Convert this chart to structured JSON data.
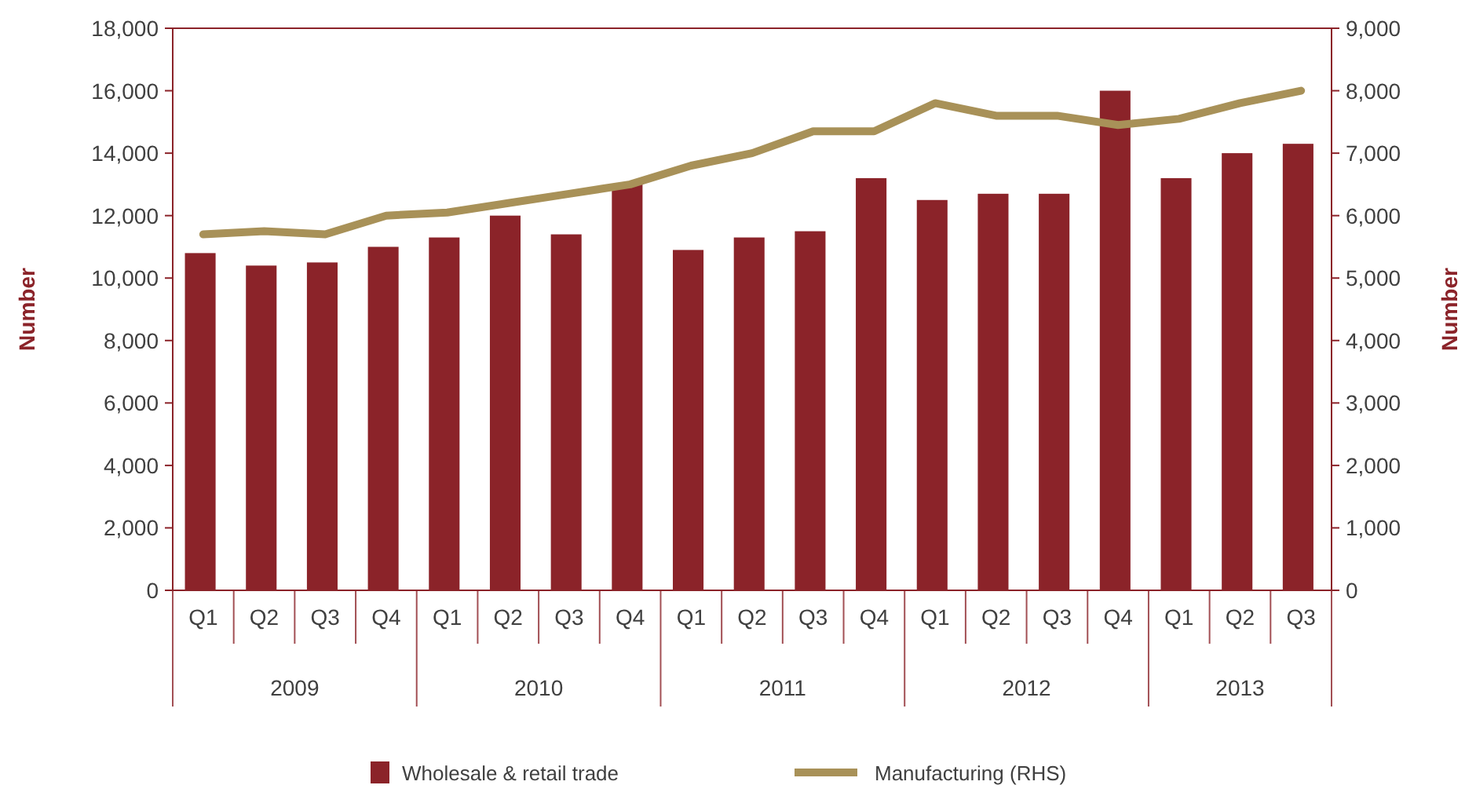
{
  "chart_data": {
    "type": "bar",
    "categories": [
      "Q1",
      "Q2",
      "Q3",
      "Q4",
      "Q1",
      "Q2",
      "Q3",
      "Q4",
      "Q1",
      "Q2",
      "Q3",
      "Q4",
      "Q1",
      "Q2",
      "Q3",
      "Q4",
      "Q1",
      "Q2",
      "Q3"
    ],
    "annotations": [
      "2009",
      "2010",
      "2011",
      "2012",
      "2013"
    ],
    "ylabel": "Number",
    "y2label": "Number",
    "ylim": [
      0,
      18000
    ],
    "yticks": [
      {
        "value": 0,
        "label": "0"
      },
      {
        "value": 2000,
        "label": "2,000"
      },
      {
        "value": 4000,
        "label": "4,000"
      },
      {
        "value": 6000,
        "label": "6,000"
      },
      {
        "value": 8000,
        "label": "8,000"
      },
      {
        "value": 10000,
        "label": "10,000"
      },
      {
        "value": 12000,
        "label": "12,000"
      },
      {
        "value": 14000,
        "label": "14,000"
      },
      {
        "value": 16000,
        "label": "16,000"
      },
      {
        "value": 18000,
        "label": "18,000"
      }
    ],
    "y2lim": [
      0,
      9000
    ],
    "y2ticks": [
      {
        "value": 0,
        "label": "0"
      },
      {
        "value": 1000,
        "label": "1,000"
      },
      {
        "value": 2000,
        "label": "2,000"
      },
      {
        "value": 3000,
        "label": "3,000"
      },
      {
        "value": 4000,
        "label": "4,000"
      },
      {
        "value": 5000,
        "label": "5,000"
      },
      {
        "value": 6000,
        "label": "6,000"
      },
      {
        "value": 7000,
        "label": "7,000"
      },
      {
        "value": 8000,
        "label": "8,000"
      },
      {
        "value": 9000,
        "label": "9,000"
      }
    ],
    "legend": "bottom",
    "grid": false,
    "marker": "none",
    "series": [
      {
        "name": "Wholesale & retail trade",
        "color": "#8b2329",
        "values": [
          10800,
          10400,
          10500,
          11000,
          11300,
          12000,
          11400,
          13000,
          10900,
          11300,
          11500,
          13200,
          12500,
          12700,
          12700,
          16000,
          13200,
          14000,
          14300
        ]
      },
      {
        "name": "Manufacturing (RHS)",
        "type": "line",
        "axis": "y2",
        "color": "#a89158",
        "values": [
          5700,
          5750,
          5700,
          6000,
          6050,
          6200,
          6350,
          6500,
          6800,
          7000,
          7350,
          7350,
          7800,
          7600,
          7600,
          7450,
          7550,
          7800,
          8000
        ]
      }
    ]
  }
}
